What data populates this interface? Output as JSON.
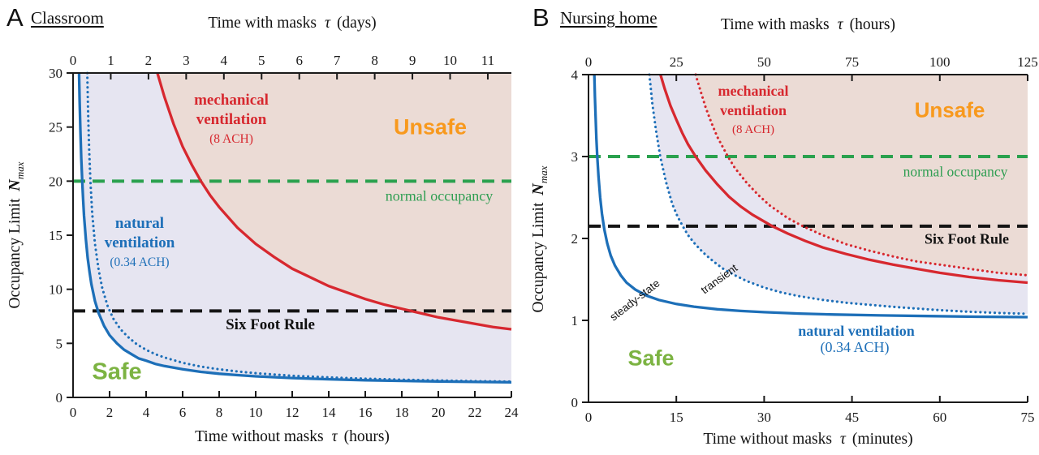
{
  "panels": [
    {
      "letter": "A",
      "title": "Classroom",
      "top_axis": {
        "pre": "Time with masks",
        "tau": "τ",
        "unit": "(days)"
      },
      "bottom_axis": {
        "pre": "Time without masks",
        "tau": "τ",
        "unit": "(hours)"
      },
      "y_axis": {
        "pre": "Occupancy Limit",
        "symbol": "N",
        "subscript": "max"
      },
      "labels": {
        "mech_line1": "mechanical",
        "mech_line2": "ventilation",
        "mech_ach": "(8 ACH)",
        "nat_line1": "natural",
        "nat_line2": "ventilation",
        "nat_ach": "(0.34 ACH)",
        "unsafe": "Unsafe",
        "safe": "Safe",
        "normal_occupancy": "normal occupancy",
        "six_foot_rule": "Six Foot Rule"
      }
    },
    {
      "letter": "B",
      "title": "Nursing home",
      "top_axis": {
        "pre": "Time with masks",
        "tau": "τ",
        "unit": "(hours)"
      },
      "bottom_axis": {
        "pre": "Time without masks",
        "tau": "τ",
        "unit": "(minutes)"
      },
      "y_axis": {
        "pre": "Occupancy Limit",
        "symbol": "N",
        "subscript": "max"
      },
      "labels": {
        "mech_line1": "mechanical",
        "mech_line2": "ventilation",
        "mech_ach": "(8 ACH)",
        "nat_line": "natural ventilation",
        "nat_ach": "(0.34 ACH)",
        "unsafe": "Unsafe",
        "safe": "Safe",
        "normal_occupancy": "normal occupancy",
        "six_foot_rule": "Six Foot Rule",
        "steady_state": "steady-state",
        "transient": "transient"
      }
    }
  ],
  "chart_data": [
    {
      "type": "line",
      "title": "Classroom",
      "xlabel_bottom": "Time without masks τ (hours)",
      "xlabel_top": "Time with masks τ (days)",
      "ylabel": "Occupancy Limit N_max",
      "xlim": [
        0,
        24
      ],
      "ylim": [
        0,
        30
      ],
      "x_ticks_bottom": [
        0,
        2,
        4,
        6,
        8,
        10,
        12,
        14,
        16,
        18,
        20,
        22,
        24
      ],
      "x_ticks_top": [
        0,
        1,
        2,
        3,
        4,
        5,
        6,
        7,
        8,
        9,
        10,
        11
      ],
      "x_top_max": 11.625,
      "y_ticks": [
        0,
        5,
        10,
        15,
        20,
        25,
        30
      ],
      "grid": false,
      "reference_lines": [
        {
          "name": "normal-occupancy",
          "label": "normal occupancy",
          "y": 20,
          "color": "#2aa14e"
        },
        {
          "name": "six-foot-rule",
          "label": "Six Foot Rule",
          "y": 8,
          "color": "#151515"
        }
      ],
      "series": [
        {
          "id": "nat_ss",
          "name": "natural ventilation (0.34 ACH) steady-state",
          "style": "solid",
          "color": "#1d6fb8",
          "points": [
            [
              0.33,
              30
            ],
            [
              0.36,
              27.4
            ],
            [
              0.4,
              24.8
            ],
            [
              0.45,
              22.1
            ],
            [
              0.5,
              20
            ],
            [
              0.55,
              18.3
            ],
            [
              0.6,
              16.8
            ],
            [
              0.7,
              14.6
            ],
            [
              0.8,
              12.9
            ],
            [
              0.9,
              11.6
            ],
            [
              1.0,
              10.5
            ],
            [
              1.2,
              8.9
            ],
            [
              1.4,
              7.8
            ],
            [
              1.7,
              6.6
            ],
            [
              2.0,
              5.75
            ],
            [
              2.4,
              5.0
            ],
            [
              2.8,
              4.4
            ],
            [
              3.2,
              4.0
            ],
            [
              3.6,
              3.6
            ],
            [
              4.0,
              3.4
            ],
            [
              4.5,
              3.1
            ],
            [
              5.0,
              2.9
            ],
            [
              6.0,
              2.6
            ],
            [
              7.0,
              2.36
            ],
            [
              8.0,
              2.19
            ],
            [
              9.0,
              2.06
            ],
            [
              10,
              1.95
            ],
            [
              12,
              1.79
            ],
            [
              14,
              1.68
            ],
            [
              16,
              1.59
            ],
            [
              18,
              1.53
            ],
            [
              20,
              1.48
            ],
            [
              22,
              1.43
            ],
            [
              24,
              1.4
            ]
          ]
        },
        {
          "id": "nat_tr",
          "name": "natural ventilation transient",
          "style": "dotted",
          "color": "#1d6fb8",
          "points": [
            [
              0.78,
              30
            ],
            [
              0.82,
              26.5
            ],
            [
              0.88,
              23
            ],
            [
              0.95,
              20
            ],
            [
              1.05,
              17
            ],
            [
              1.2,
              14.2
            ],
            [
              1.4,
              11.8
            ],
            [
              1.6,
              10.1
            ],
            [
              1.9,
              8.4
            ],
            [
              2.2,
              7.3
            ],
            [
              2.6,
              6.3
            ],
            [
              3.0,
              5.6
            ],
            [
              3.5,
              4.9
            ],
            [
              4.0,
              4.4
            ],
            [
              4.5,
              4.0
            ],
            [
              5.0,
              3.7
            ],
            [
              6.0,
              3.2
            ],
            [
              7.0,
              2.85
            ],
            [
              8.0,
              2.6
            ],
            [
              9.0,
              2.4
            ],
            [
              10,
              2.24
            ],
            [
              12,
              2.0
            ],
            [
              14,
              1.85
            ],
            [
              16,
              1.73
            ],
            [
              18,
              1.64
            ],
            [
              20,
              1.57
            ],
            [
              22,
              1.51
            ],
            [
              24,
              1.46
            ]
          ]
        },
        {
          "id": "mech_ss",
          "name": "mechanical ventilation (8 ACH)",
          "style": "solid",
          "color": "#d7282f",
          "points": [
            [
              4.62,
              30
            ],
            [
              5.0,
              27.8
            ],
            [
              5.5,
              25.3
            ],
            [
              6.0,
              23.2
            ],
            [
              6.5,
              21.5
            ],
            [
              7.0,
              20
            ],
            [
              7.5,
              18.7
            ],
            [
              8.0,
              17.6
            ],
            [
              9.0,
              15.7
            ],
            [
              10,
              14.2
            ],
            [
              11,
              13.0
            ],
            [
              12,
              11.9
            ],
            [
              13,
              11.1
            ],
            [
              14,
              10.3
            ],
            [
              15,
              9.7
            ],
            [
              16,
              9.1
            ],
            [
              17,
              8.6
            ],
            [
              18,
              8.2
            ],
            [
              19,
              7.8
            ],
            [
              20,
              7.4
            ],
            [
              21,
              7.1
            ],
            [
              22,
              6.8
            ],
            [
              23,
              6.5
            ],
            [
              24,
              6.3
            ]
          ]
        }
      ],
      "regions": [
        {
          "name": "conditionally-safe",
          "kind": "between",
          "lower": "nat_ss",
          "upper": "mech_ss",
          "fill": "#e6e5f1"
        },
        {
          "name": "unsafe",
          "kind": "above",
          "series": "mech_ss",
          "fill": "#ebdbd5"
        }
      ]
    },
    {
      "type": "line",
      "title": "Nursing home",
      "xlabel_bottom": "Time without masks τ (minutes)",
      "xlabel_top": "Time with masks τ (hours)",
      "ylabel": "Occupancy Limit N_max",
      "xlim": [
        0,
        75
      ],
      "ylim": [
        0,
        4
      ],
      "x_ticks_bottom": [
        0,
        15,
        30,
        45,
        60,
        75
      ],
      "x_ticks_top": [
        0,
        25,
        50,
        75,
        100,
        125
      ],
      "x_top_max": 125,
      "y_ticks": [
        0,
        1,
        2,
        3,
        4
      ],
      "grid": false,
      "reference_lines": [
        {
          "name": "normal-occupancy",
          "label": "normal occupancy",
          "y": 3,
          "color": "#2aa14e"
        },
        {
          "name": "six-foot-rule",
          "label": "Six Foot Rule",
          "y": 2.15,
          "color": "#151515"
        }
      ],
      "series": [
        {
          "id": "nat_ss",
          "name": "natural ventilation (0.34 ACH) steady-state",
          "style": "solid",
          "color": "#1d6fb8",
          "points": [
            [
              1.0,
              4
            ],
            [
              1.1,
              3.73
            ],
            [
              1.2,
              3.5
            ],
            [
              1.35,
              3.22
            ],
            [
              1.5,
              3.0
            ],
            [
              1.7,
              2.76
            ],
            [
              2.0,
              2.5
            ],
            [
              2.3,
              2.3
            ],
            [
              2.7,
              2.11
            ],
            [
              3.2,
              1.94
            ],
            [
              3.8,
              1.79
            ],
            [
              4.5,
              1.67
            ],
            [
              5.5,
              1.55
            ],
            [
              6.5,
              1.46
            ],
            [
              8,
              1.375
            ],
            [
              10,
              1.3
            ],
            [
              12,
              1.25
            ],
            [
              15,
              1.2
            ],
            [
              18,
              1.167
            ],
            [
              22,
              1.136
            ],
            [
              26,
              1.115
            ],
            [
              30,
              1.1
            ],
            [
              36,
              1.083
            ],
            [
              42,
              1.071
            ],
            [
              50,
              1.06
            ],
            [
              58,
              1.052
            ],
            [
              66,
              1.045
            ],
            [
              75,
              1.04
            ]
          ]
        },
        {
          "id": "nat_tr",
          "name": "natural ventilation transient",
          "style": "dotted",
          "color": "#1d6fb8",
          "points": [
            [
              10.4,
              4
            ],
            [
              10.9,
              3.65
            ],
            [
              11.5,
              3.33
            ],
            [
              12.25,
              3.0
            ],
            [
              13.2,
              2.7
            ],
            [
              14.3,
              2.42
            ],
            [
              15.2,
              2.27
            ],
            [
              16.1,
              2.15
            ],
            [
              17,
              2.04
            ],
            [
              18,
              1.95
            ],
            [
              19,
              1.87
            ],
            [
              20,
              1.8
            ],
            [
              21.5,
              1.71
            ],
            [
              23,
              1.63
            ],
            [
              25,
              1.55
            ],
            [
              27,
              1.48
            ],
            [
              30,
              1.4
            ],
            [
              33,
              1.34
            ],
            [
              36,
              1.295
            ],
            [
              40,
              1.25
            ],
            [
              44,
              1.215
            ],
            [
              48,
              1.19
            ],
            [
              52,
              1.165
            ],
            [
              56,
              1.145
            ],
            [
              60,
              1.125
            ],
            [
              65,
              1.105
            ],
            [
              70,
              1.09
            ],
            [
              75,
              1.08
            ]
          ]
        },
        {
          "id": "mech_ss",
          "name": "mechanical ventilation (8 ACH) steady-state",
          "style": "solid",
          "color": "#d7282f",
          "points": [
            [
              12.3,
              4
            ],
            [
              13,
              3.83
            ],
            [
              14,
              3.62
            ],
            [
              15,
              3.45
            ],
            [
              16,
              3.29
            ],
            [
              17,
              3.15
            ],
            [
              18.3,
              3.0
            ],
            [
              20,
              2.83
            ],
            [
              22,
              2.66
            ],
            [
              24,
              2.51
            ],
            [
              26,
              2.39
            ],
            [
              28,
              2.29
            ],
            [
              31.4,
              2.15
            ],
            [
              34,
              2.06
            ],
            [
              37,
              1.97
            ],
            [
              40,
              1.89
            ],
            [
              44,
              1.81
            ],
            [
              48,
              1.74
            ],
            [
              52,
              1.68
            ],
            [
              56,
              1.63
            ],
            [
              60,
              1.58
            ],
            [
              65,
              1.53
            ],
            [
              70,
              1.49
            ],
            [
              75,
              1.46
            ]
          ]
        },
        {
          "id": "mech_tr",
          "name": "mechanical ventilation transient",
          "style": "dotted",
          "color": "#d7282f",
          "points": [
            [
              18.3,
              4
            ],
            [
              19,
              3.83
            ],
            [
              20,
              3.6
            ],
            [
              21,
              3.41
            ],
            [
              22,
              3.24
            ],
            [
              23.8,
              3.0
            ],
            [
              25,
              2.86
            ],
            [
              27,
              2.68
            ],
            [
              29,
              2.53
            ],
            [
              31,
              2.4
            ],
            [
              34,
              2.25
            ],
            [
              36.6,
              2.15
            ],
            [
              40,
              2.04
            ],
            [
              44,
              1.93
            ],
            [
              48,
              1.85
            ],
            [
              52,
              1.78
            ],
            [
              56,
              1.72
            ],
            [
              60,
              1.68
            ],
            [
              65,
              1.63
            ],
            [
              70,
              1.58
            ],
            [
              75,
              1.55
            ]
          ]
        }
      ],
      "regions": [
        {
          "name": "conditionally-safe",
          "kind": "between",
          "lower": "nat_tr",
          "upper": "mech_tr",
          "fill": "#e6e5f1"
        },
        {
          "name": "unsafe",
          "kind": "above",
          "series": "mech_tr",
          "fill": "#ebdbd5"
        }
      ]
    }
  ]
}
